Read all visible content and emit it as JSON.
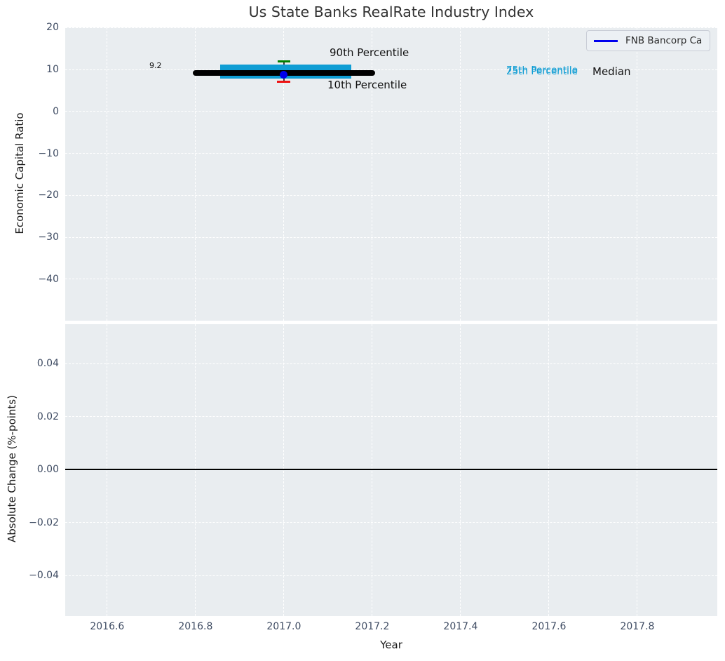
{
  "title": "Us State Banks RealRate Industry Index",
  "legend": {
    "label": "FNB Bancorp Ca",
    "line_color": "#0000ee"
  },
  "axes": {
    "top": {
      "ylabel": "Economic Capital Ratio"
    },
    "bottom": {
      "ylabel": "Absolute Change (%-points)",
      "xlabel": "Year"
    }
  },
  "theme": {
    "plot_bg": "#e9edf0",
    "grid_color": "#ffffff",
    "tick_label_color": "#3f4c63",
    "title_color": "#333333",
    "text_color": "#1a1a1a",
    "box_color": "#0f9dd4",
    "median_color": "#000000",
    "p90_color": "#008000",
    "p10_color": "#ee1111",
    "point_color": "#0000ee",
    "whisker_color": "#3c3c3c",
    "zero_line_color": "#000000"
  },
  "chart_data": [
    {
      "type": "box-timeseries",
      "title": "Us State Banks RealRate Industry Index",
      "xlabel": "Year",
      "ylabel": "Economic Capital Ratio",
      "xlim": [
        2016.505,
        2017.981
      ],
      "ylim": [
        -49.9,
        20.05
      ],
      "grid": true,
      "legend_position": "upper right",
      "xticks": {
        "values": [
          2016.6,
          2016.8,
          2017.0,
          2017.2,
          2017.4,
          2017.6,
          2017.8
        ],
        "labels": [
          "2016.6",
          "2016.8",
          "2017.0",
          "2017.2",
          "2017.4",
          "2017.6",
          "2017.8"
        ],
        "show_labels": false
      },
      "yticks": {
        "values": [
          20,
          10,
          0,
          -10,
          -20,
          -30,
          -40
        ],
        "labels": [
          "20",
          "10",
          "0",
          "−10",
          "−20",
          "−30",
          "−40"
        ]
      },
      "percentile_band": {
        "x_center": 2017.0,
        "median": 9.2,
        "median_x_start": 2016.8,
        "median_x_end": 2017.2,
        "p75": 11.2,
        "p25": 7.75,
        "box_x_start": 2016.855,
        "box_x_end": 2017.152,
        "p90": 12.0,
        "p10": 7.0
      },
      "series": [
        {
          "name": "FNB Bancorp Ca",
          "x": [
            2017.0
          ],
          "y": [
            8.7
          ]
        }
      ],
      "annotations": [
        {
          "id": "p90_label",
          "text": "90th Percentile",
          "color": "#111111"
        },
        {
          "id": "p10_label",
          "text": "10th Percentile",
          "color": "#111111"
        },
        {
          "id": "p75_label",
          "text": "75th Percentile",
          "color": "#0f9dd4"
        },
        {
          "id": "p25_label",
          "text": "25th Percentile",
          "color": "#0f9dd4"
        },
        {
          "id": "median_label",
          "text": "Median",
          "color": "#111111"
        },
        {
          "id": "median_value_label",
          "text": "9.2",
          "color": "#111111"
        }
      ]
    },
    {
      "type": "line",
      "title": "",
      "xlabel": "Year",
      "ylabel": "Absolute Change (%-points)",
      "xlim": [
        2016.505,
        2017.981
      ],
      "ylim": [
        -0.0553,
        0.0549
      ],
      "grid": true,
      "xticks": {
        "values": [
          2016.6,
          2016.8,
          2017.0,
          2017.2,
          2017.4,
          2017.6,
          2017.8
        ],
        "labels": [
          "2016.6",
          "2016.8",
          "2017.0",
          "2017.2",
          "2017.4",
          "2017.6",
          "2017.8"
        ],
        "show_labels": true
      },
      "yticks": {
        "values": [
          0.04,
          0.02,
          0,
          -0.02,
          -0.04
        ],
        "labels": [
          "0.04",
          "0.02",
          "0.00",
          "−0.02",
          "−0.04"
        ]
      },
      "zero_line": 0.0,
      "series": []
    }
  ]
}
